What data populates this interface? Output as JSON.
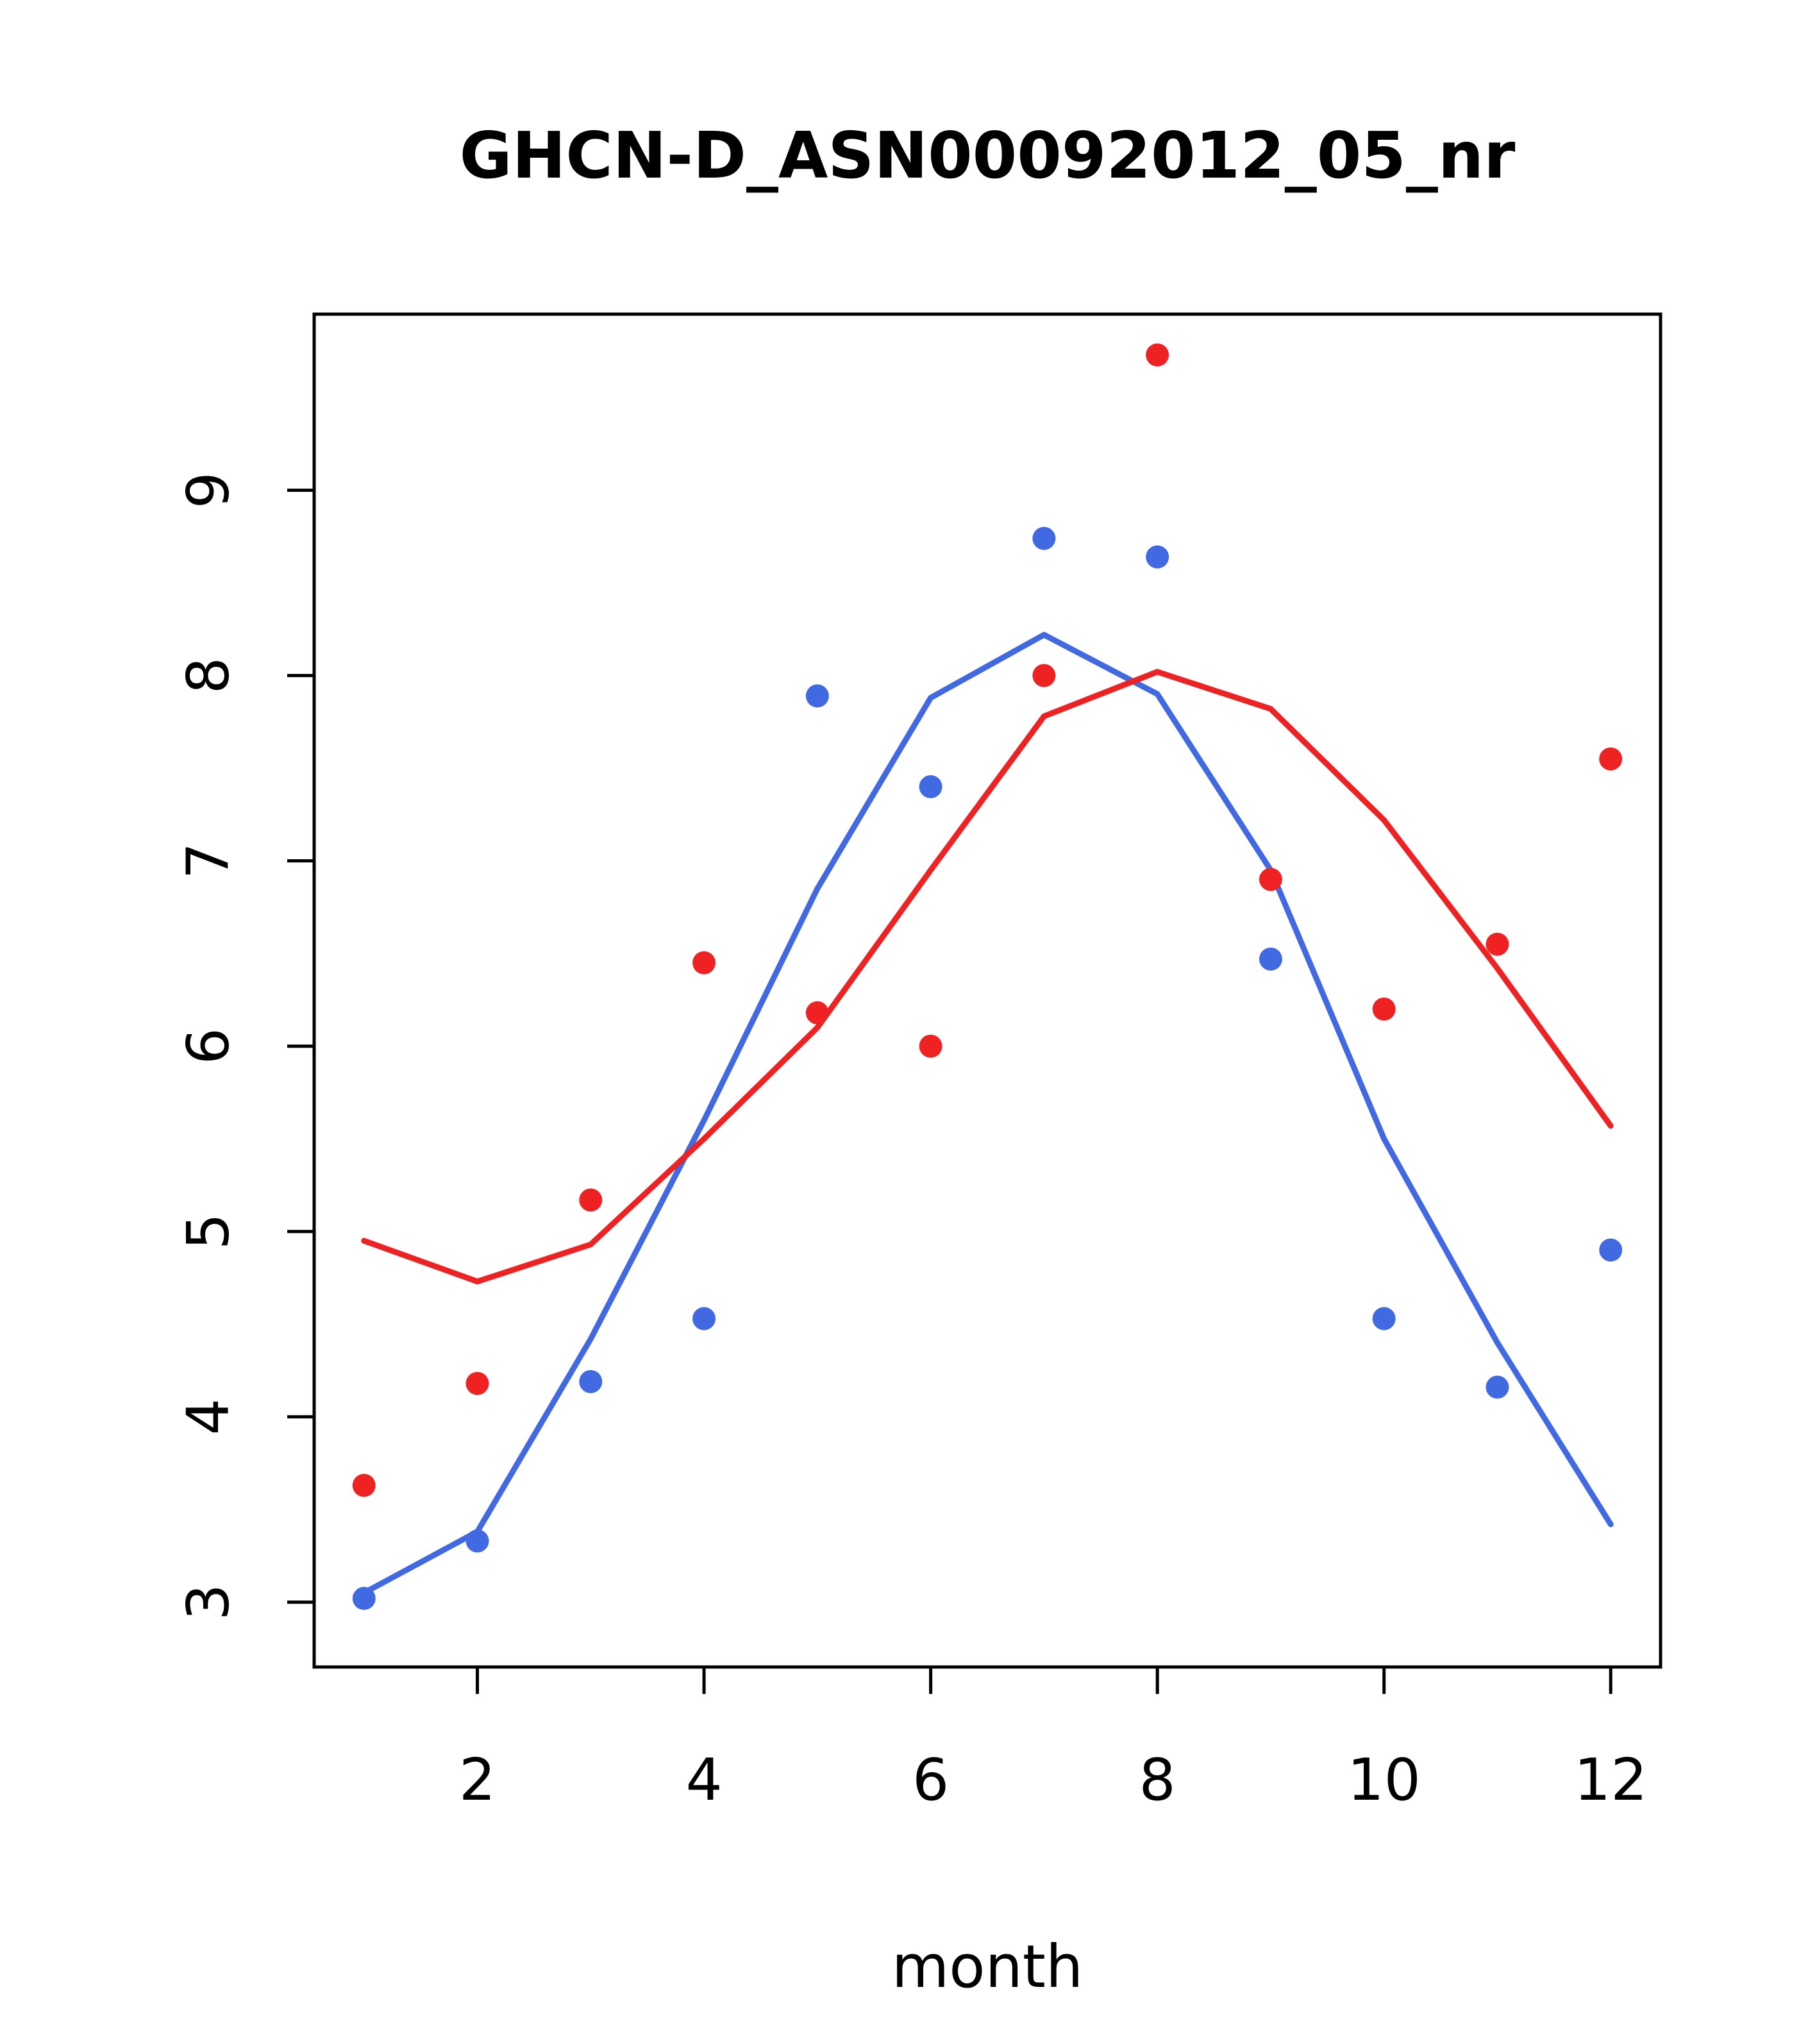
{
  "chart_data": {
    "type": "scatter",
    "title": "GHCN-D_ASN00092012_05_nr",
    "xlabel": "month",
    "ylabel": "",
    "xlim": [
      0.56,
      12.44
    ],
    "ylim": [
      2.65,
      9.95
    ],
    "xticks": [
      2,
      4,
      6,
      8,
      10,
      12
    ],
    "yticks": [
      3,
      4,
      5,
      6,
      7,
      8,
      9
    ],
    "grid": false,
    "legend_position": "none",
    "x": [
      1,
      2,
      3,
      4,
      5,
      6,
      7,
      8,
      9,
      10,
      11,
      12
    ],
    "series": [
      {
        "name": "series-blue",
        "color": "#4169e1",
        "marker": "filled-circle",
        "points": [
          3.02,
          3.33,
          4.19,
          4.53,
          7.89,
          7.4,
          8.74,
          8.64,
          6.47,
          4.53,
          4.16,
          4.9
        ],
        "line": [
          3.05,
          3.38,
          4.42,
          5.6,
          6.85,
          7.88,
          8.22,
          7.9,
          6.95,
          5.5,
          4.4,
          3.42
        ]
      },
      {
        "name": "series-red",
        "color": "#ee2222",
        "marker": "filled-circle",
        "points": [
          3.63,
          4.18,
          5.17,
          6.45,
          6.18,
          6.0,
          8.0,
          9.73,
          6.9,
          6.2,
          6.55,
          7.55
        ],
        "line": [
          4.95,
          4.73,
          4.93,
          5.5,
          6.1,
          6.95,
          7.78,
          8.02,
          7.82,
          7.22,
          6.42,
          5.57
        ]
      }
    ]
  }
}
